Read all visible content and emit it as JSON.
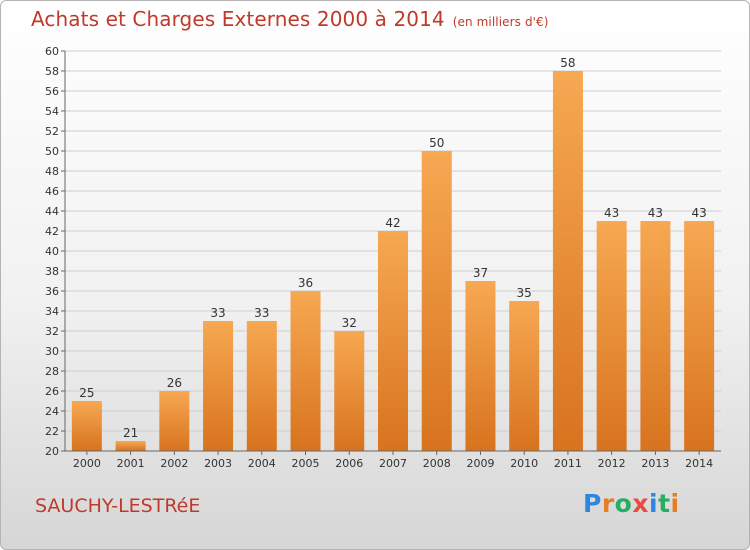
{
  "header": {
    "title": "Achats et Charges Externes 2000 à 2014",
    "subtitle": "(en milliers d'€)"
  },
  "footer": {
    "commune": "SAUCHY-LESTRéE",
    "logo": {
      "text": "Proxiti",
      "colors": [
        "#2e86de",
        "#e67e22",
        "#27ae60",
        "#e74c3c",
        "#2e86de",
        "#27ae60",
        "#e67e22"
      ]
    }
  },
  "chart_data": {
    "type": "bar",
    "categories": [
      "2000",
      "2001",
      "2002",
      "2003",
      "2004",
      "2005",
      "2006",
      "2007",
      "2008",
      "2009",
      "2010",
      "2011",
      "2012",
      "2013",
      "2014"
    ],
    "values": [
      25,
      21,
      26,
      33,
      33,
      36,
      32,
      42,
      50,
      37,
      35,
      58,
      43,
      43,
      43
    ],
    "title": "Achats et Charges Externes 2000 à 2014",
    "subtitle": "(en milliers d'€)",
    "xlabel": "",
    "ylabel": "",
    "ylim": [
      20,
      60
    ],
    "yticks": [
      20,
      22,
      24,
      26,
      28,
      30,
      32,
      34,
      36,
      38,
      40,
      42,
      44,
      46,
      48,
      50,
      52,
      54,
      56,
      58,
      60
    ],
    "grid": true,
    "show_value_labels": true,
    "colors": {
      "bar_light": "#f7a852",
      "bar_dark": "#d8731e",
      "grid": "#cfcfcf",
      "axis": "#666666",
      "text": "#333333",
      "title": "#c0392b"
    }
  }
}
